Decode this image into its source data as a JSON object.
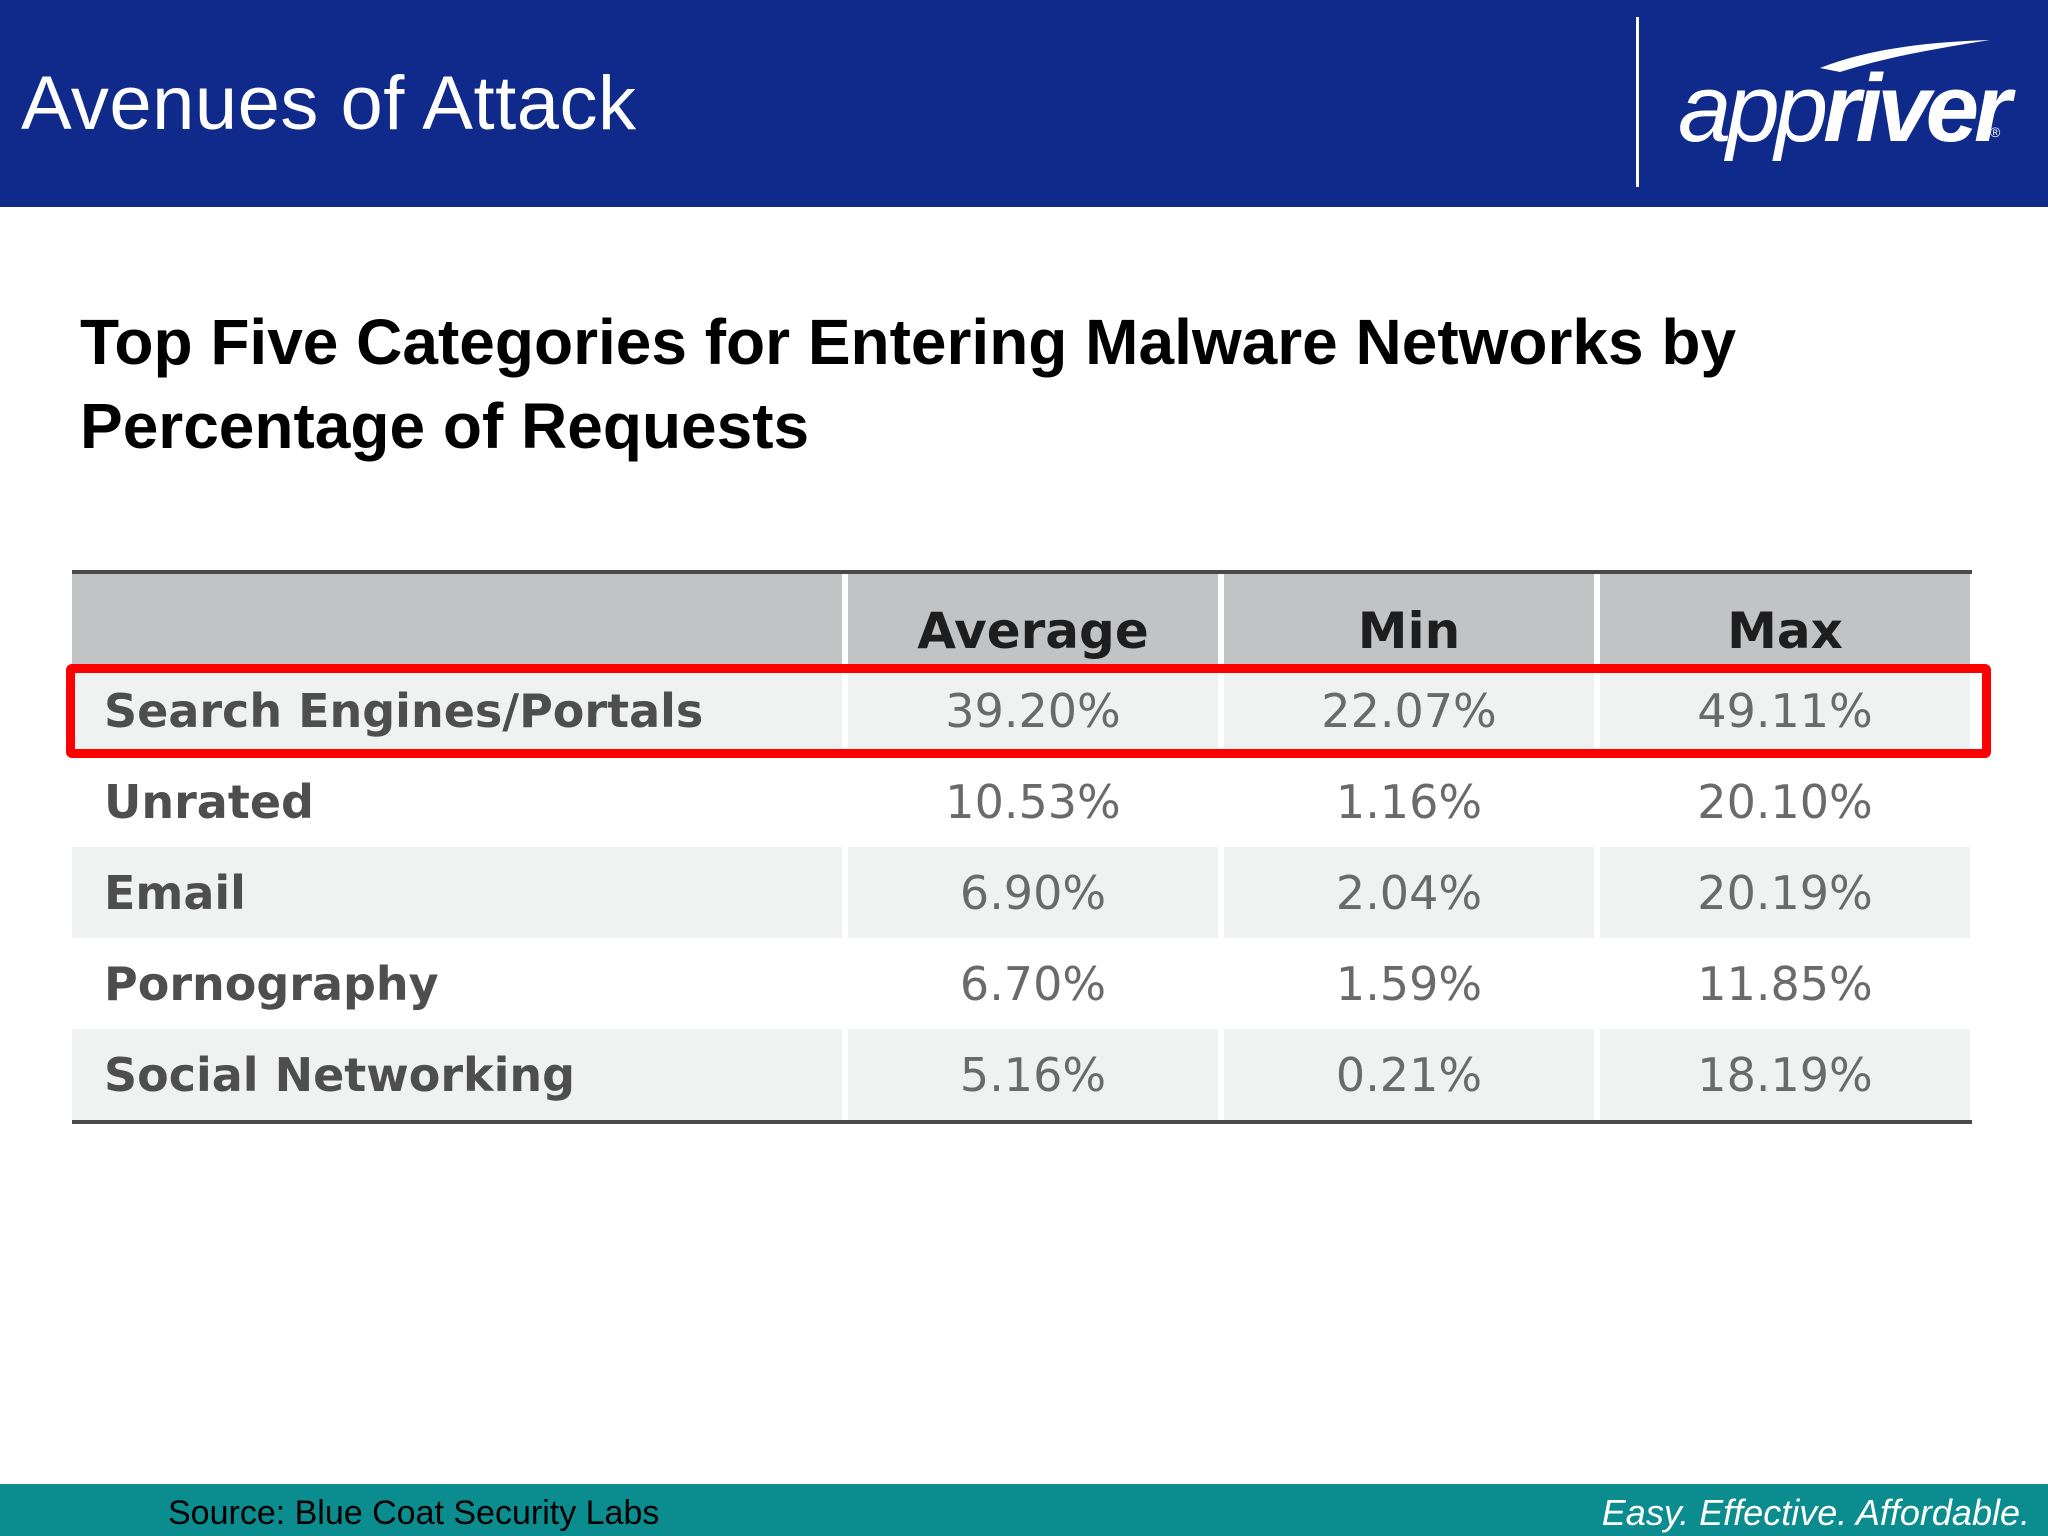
{
  "header": {
    "title": "Avenues of Attack",
    "logo": {
      "text_light": "app",
      "text_bold": "river",
      "registered": "®"
    }
  },
  "content": {
    "heading": "Top Five Categories for Entering Malware Networks by Percentage of Requests"
  },
  "table": {
    "columns": [
      "",
      "Average",
      "Min",
      "Max"
    ],
    "rows": [
      {
        "label": "Search Engines/Portals",
        "average": "39.20%",
        "min": "22.07%",
        "max": "49.11%",
        "highlighted": true
      },
      {
        "label": "Unrated",
        "average": "10.53%",
        "min": "1.16%",
        "max": "20.10%",
        "highlighted": false
      },
      {
        "label": "Email",
        "average": "6.90%",
        "min": "2.04%",
        "max": "20.19%",
        "highlighted": false
      },
      {
        "label": "Pornography",
        "average": "6.70%",
        "min": "1.59%",
        "max": "11.85%",
        "highlighted": false
      },
      {
        "label": "Social Networking",
        "average": "5.16%",
        "min": "0.21%",
        "max": "18.19%",
        "highlighted": false
      }
    ]
  },
  "footer": {
    "source": "Source: Blue Coat Security Labs",
    "tagline": "Easy. Effective. Affordable."
  },
  "colors": {
    "header_bg": "#0f2a8b",
    "footer_bg": "#0b8c8f",
    "highlight": "#ff0000",
    "table_header_bg": "#c2c3c5",
    "row_shade": "#f0f1f1"
  }
}
